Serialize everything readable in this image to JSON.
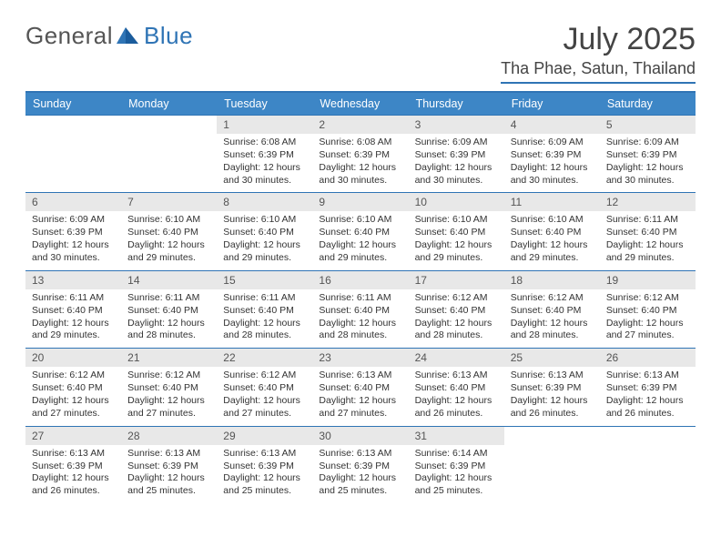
{
  "logo": {
    "general": "General",
    "blue": "Blue"
  },
  "title": {
    "month": "July 2025",
    "location": "Tha Phae, Satun, Thailand"
  },
  "colors": {
    "accent": "#2f74b5",
    "header_bg": "#3d86c6",
    "day_num_bg": "#e8e8e8",
    "text": "#333333"
  },
  "dow": [
    "Sunday",
    "Monday",
    "Tuesday",
    "Wednesday",
    "Thursday",
    "Friday",
    "Saturday"
  ],
  "weeks": [
    [
      null,
      null,
      {
        "n": "1",
        "sr": "6:08 AM",
        "ss": "6:39 PM",
        "dl": "12 hours and 30 minutes."
      },
      {
        "n": "2",
        "sr": "6:08 AM",
        "ss": "6:39 PM",
        "dl": "12 hours and 30 minutes."
      },
      {
        "n": "3",
        "sr": "6:09 AM",
        "ss": "6:39 PM",
        "dl": "12 hours and 30 minutes."
      },
      {
        "n": "4",
        "sr": "6:09 AM",
        "ss": "6:39 PM",
        "dl": "12 hours and 30 minutes."
      },
      {
        "n": "5",
        "sr": "6:09 AM",
        "ss": "6:39 PM",
        "dl": "12 hours and 30 minutes."
      }
    ],
    [
      {
        "n": "6",
        "sr": "6:09 AM",
        "ss": "6:39 PM",
        "dl": "12 hours and 30 minutes."
      },
      {
        "n": "7",
        "sr": "6:10 AM",
        "ss": "6:40 PM",
        "dl": "12 hours and 29 minutes."
      },
      {
        "n": "8",
        "sr": "6:10 AM",
        "ss": "6:40 PM",
        "dl": "12 hours and 29 minutes."
      },
      {
        "n": "9",
        "sr": "6:10 AM",
        "ss": "6:40 PM",
        "dl": "12 hours and 29 minutes."
      },
      {
        "n": "10",
        "sr": "6:10 AM",
        "ss": "6:40 PM",
        "dl": "12 hours and 29 minutes."
      },
      {
        "n": "11",
        "sr": "6:10 AM",
        "ss": "6:40 PM",
        "dl": "12 hours and 29 minutes."
      },
      {
        "n": "12",
        "sr": "6:11 AM",
        "ss": "6:40 PM",
        "dl": "12 hours and 29 minutes."
      }
    ],
    [
      {
        "n": "13",
        "sr": "6:11 AM",
        "ss": "6:40 PM",
        "dl": "12 hours and 29 minutes."
      },
      {
        "n": "14",
        "sr": "6:11 AM",
        "ss": "6:40 PM",
        "dl": "12 hours and 28 minutes."
      },
      {
        "n": "15",
        "sr": "6:11 AM",
        "ss": "6:40 PM",
        "dl": "12 hours and 28 minutes."
      },
      {
        "n": "16",
        "sr": "6:11 AM",
        "ss": "6:40 PM",
        "dl": "12 hours and 28 minutes."
      },
      {
        "n": "17",
        "sr": "6:12 AM",
        "ss": "6:40 PM",
        "dl": "12 hours and 28 minutes."
      },
      {
        "n": "18",
        "sr": "6:12 AM",
        "ss": "6:40 PM",
        "dl": "12 hours and 28 minutes."
      },
      {
        "n": "19",
        "sr": "6:12 AM",
        "ss": "6:40 PM",
        "dl": "12 hours and 27 minutes."
      }
    ],
    [
      {
        "n": "20",
        "sr": "6:12 AM",
        "ss": "6:40 PM",
        "dl": "12 hours and 27 minutes."
      },
      {
        "n": "21",
        "sr": "6:12 AM",
        "ss": "6:40 PM",
        "dl": "12 hours and 27 minutes."
      },
      {
        "n": "22",
        "sr": "6:12 AM",
        "ss": "6:40 PM",
        "dl": "12 hours and 27 minutes."
      },
      {
        "n": "23",
        "sr": "6:13 AM",
        "ss": "6:40 PM",
        "dl": "12 hours and 27 minutes."
      },
      {
        "n": "24",
        "sr": "6:13 AM",
        "ss": "6:40 PM",
        "dl": "12 hours and 26 minutes."
      },
      {
        "n": "25",
        "sr": "6:13 AM",
        "ss": "6:39 PM",
        "dl": "12 hours and 26 minutes."
      },
      {
        "n": "26",
        "sr": "6:13 AM",
        "ss": "6:39 PM",
        "dl": "12 hours and 26 minutes."
      }
    ],
    [
      {
        "n": "27",
        "sr": "6:13 AM",
        "ss": "6:39 PM",
        "dl": "12 hours and 26 minutes."
      },
      {
        "n": "28",
        "sr": "6:13 AM",
        "ss": "6:39 PM",
        "dl": "12 hours and 25 minutes."
      },
      {
        "n": "29",
        "sr": "6:13 AM",
        "ss": "6:39 PM",
        "dl": "12 hours and 25 minutes."
      },
      {
        "n": "30",
        "sr": "6:13 AM",
        "ss": "6:39 PM",
        "dl": "12 hours and 25 minutes."
      },
      {
        "n": "31",
        "sr": "6:14 AM",
        "ss": "6:39 PM",
        "dl": "12 hours and 25 minutes."
      },
      null,
      null
    ]
  ],
  "labels": {
    "sunrise": "Sunrise:",
    "sunset": "Sunset:",
    "daylight": "Daylight:"
  }
}
